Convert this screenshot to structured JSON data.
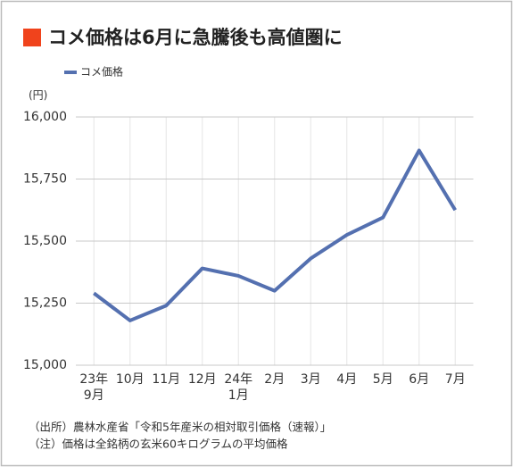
{
  "chart_data": {
    "type": "line",
    "title": "コメ価格は6月に急騰後も高値圏に",
    "y_unit": "(円)",
    "categories": [
      "23年\n9月",
      "10月",
      "11月",
      "12月",
      "24年\n1月",
      "2月",
      "3月",
      "4月",
      "5月",
      "6月",
      "7月"
    ],
    "series": [
      {
        "name": "コメ価格",
        "color": "#5470b0",
        "values": [
          15290,
          15180,
          15240,
          15390,
          15360,
          15300,
          15430,
          15525,
          15595,
          15865,
          15625
        ]
      }
    ],
    "ylim": [
      15000,
      16000
    ],
    "yticks": [
      {
        "value": 15000,
        "label": "15,000"
      },
      {
        "value": 15250,
        "label": "15,250"
      },
      {
        "value": 15500,
        "label": "15,500"
      },
      {
        "value": 15750,
        "label": "15,750"
      },
      {
        "value": 16000,
        "label": "16,000"
      }
    ],
    "grid": true,
    "notes": [
      "（出所）農林水産省「令和5年産米の相対取引価格（速報）」",
      "（注）価格は全銘柄の玄米60キログラムの平均価格"
    ]
  }
}
